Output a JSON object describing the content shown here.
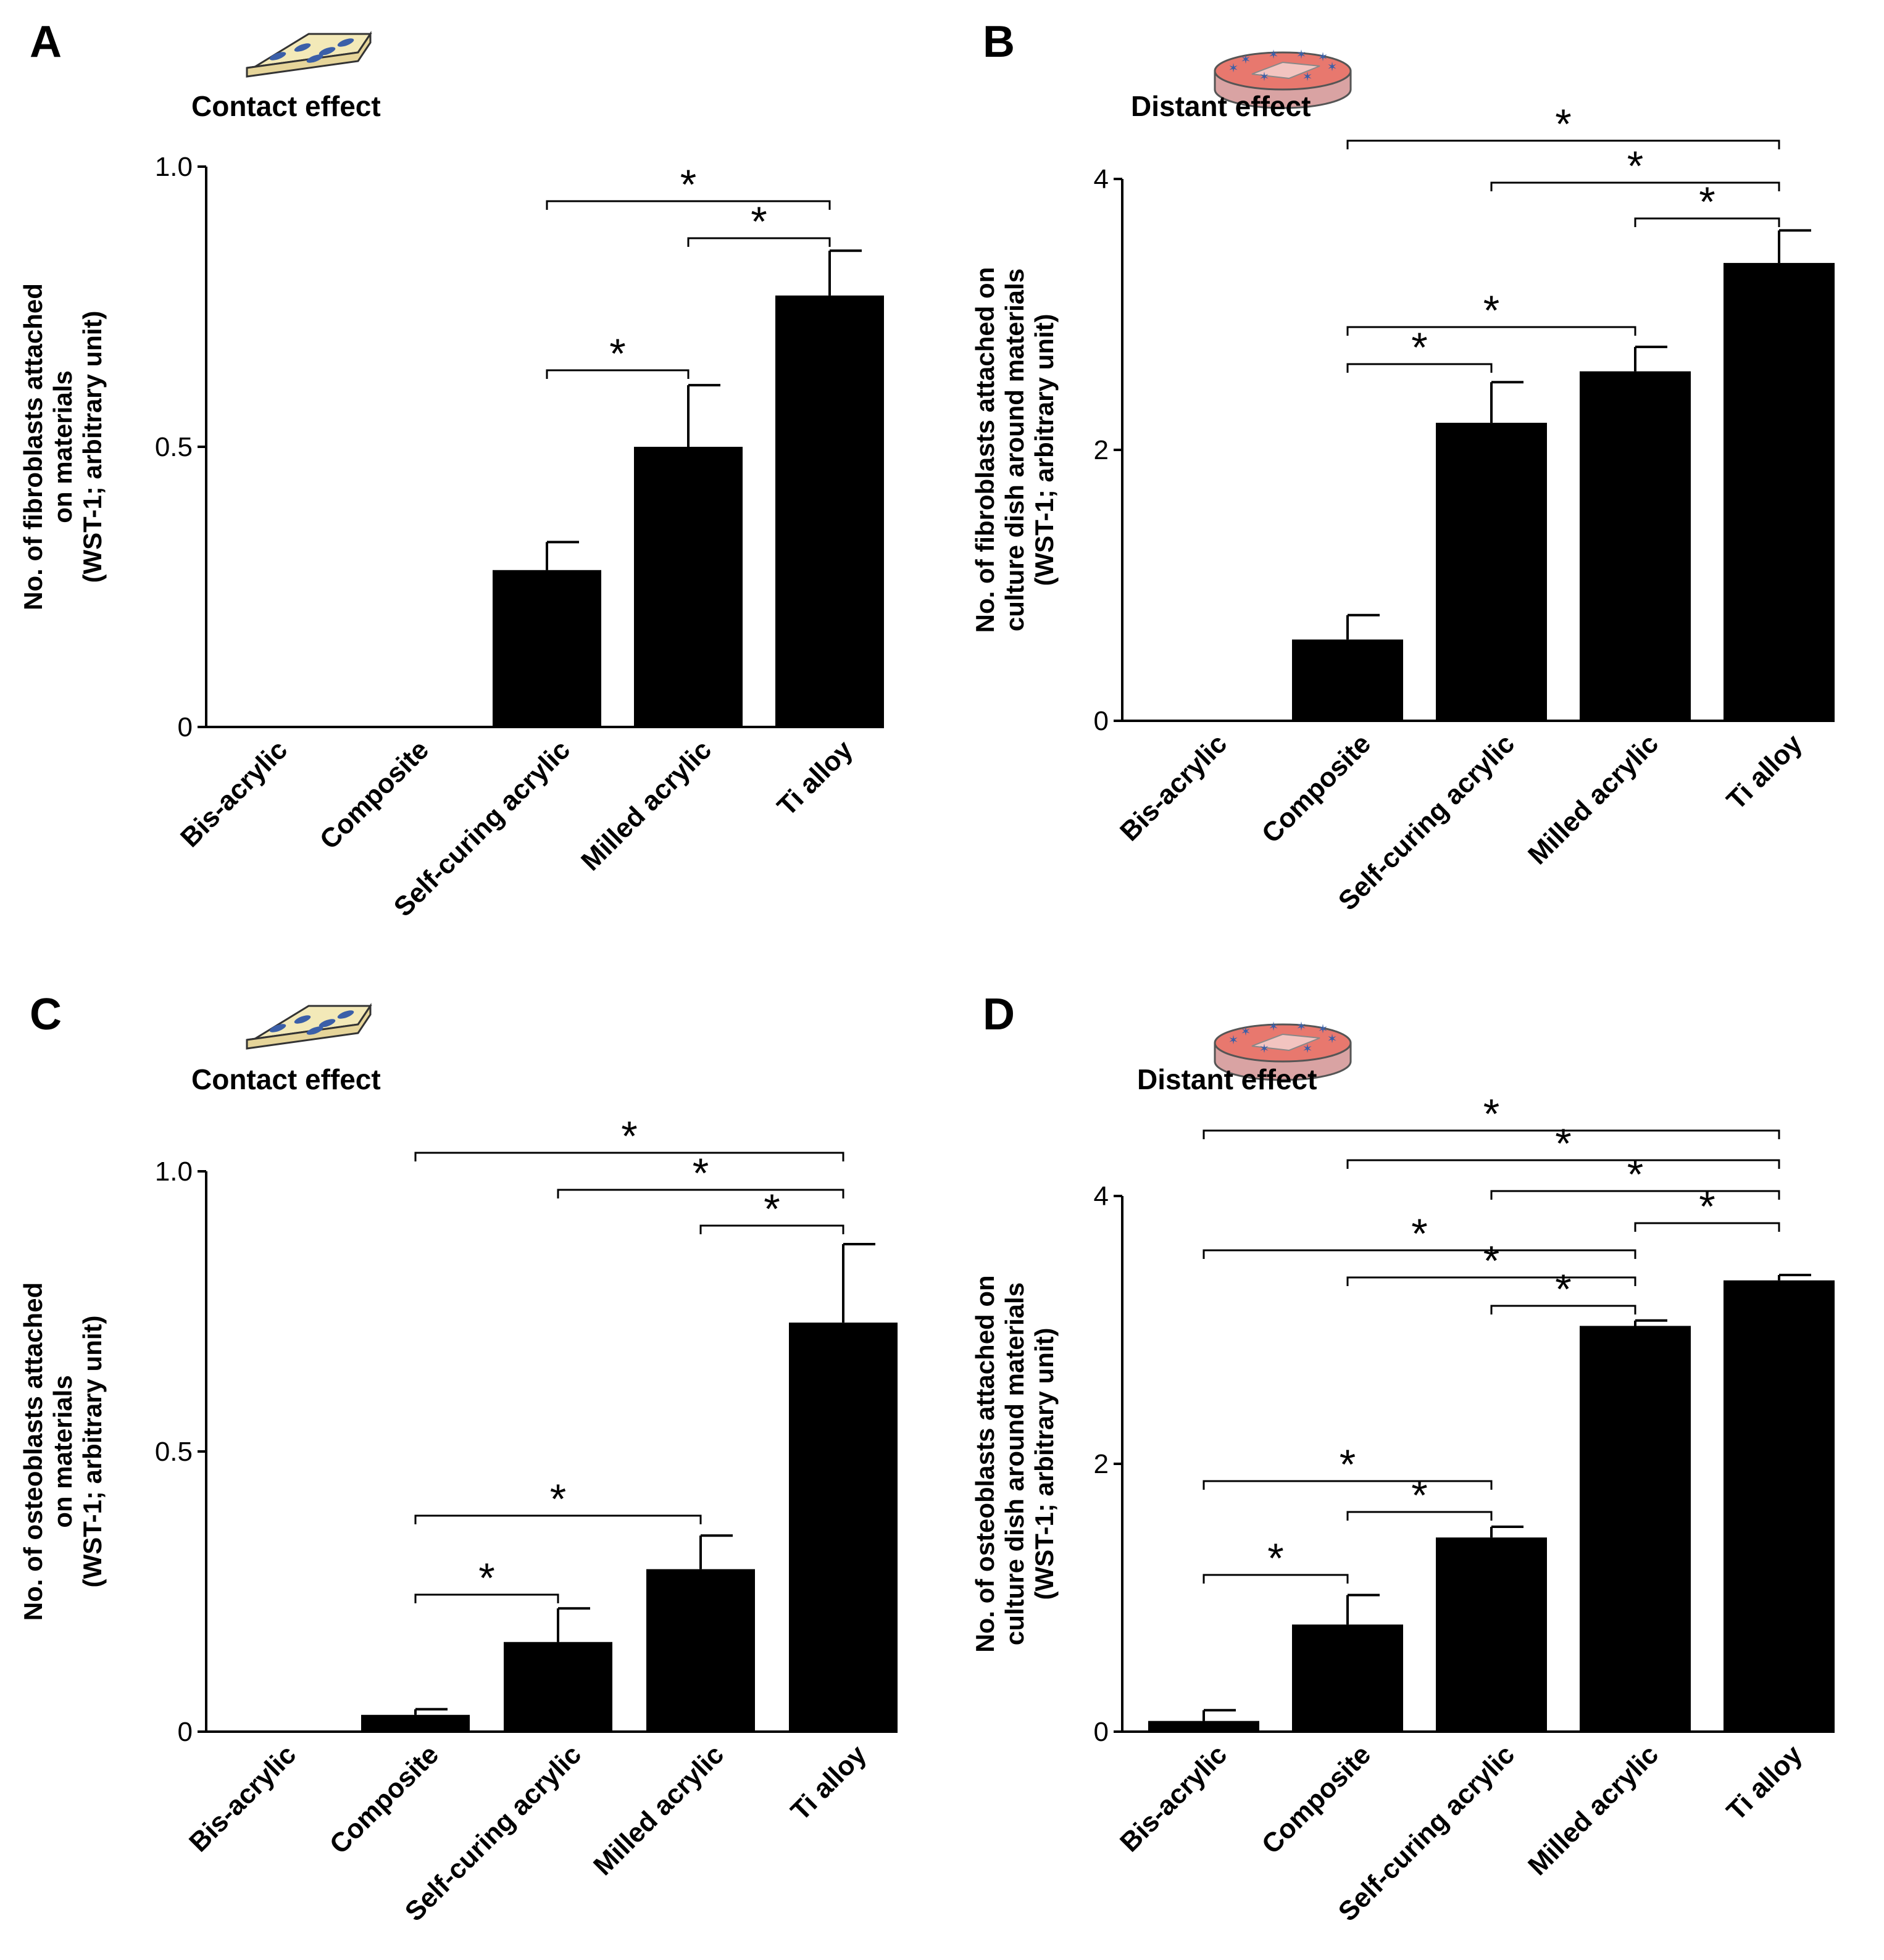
{
  "chart_data": [
    {
      "type": "bar",
      "panel": "A",
      "subtitle": "Contact effect",
      "icon": "cells-on-material-plate",
      "ylabel_lines": [
        "No. of fibroblasts attached",
        "on materials",
        "(WST-1; arbitrary unit)"
      ],
      "categories": [
        "Bis-acrylic",
        "Composite",
        "Self-curing acrylic",
        "Milled acrylic",
        "Ti alloy"
      ],
      "values": [
        0,
        0,
        0.28,
        0.5,
        0.77
      ],
      "errors": [
        0,
        0,
        0.05,
        0.11,
        0.08
      ],
      "ylim": [
        0,
        1.0
      ],
      "yticks": [
        0,
        0.5,
        1.0
      ],
      "ytick_labels": [
        "0",
        "0.5",
        "1.0"
      ],
      "significance": [
        {
          "from": 2,
          "to": 4,
          "label": "*"
        },
        {
          "from": 3,
          "to": 4,
          "label": "*"
        },
        {
          "from": 2,
          "to": 3,
          "label": "*"
        }
      ]
    },
    {
      "type": "bar",
      "panel": "B",
      "subtitle": "Distant effect",
      "icon": "culture-dish",
      "ylabel_lines": [
        "No. of fibroblasts attached on",
        "culture dish around materials",
        "(WST-1; arbitrary unit)"
      ],
      "categories": [
        "Bis-acrylic",
        "Composite",
        "Self-curing acrylic",
        "Milled acrylic",
        "Ti alloy"
      ],
      "values": [
        0,
        0.6,
        2.2,
        2.58,
        3.38
      ],
      "errors": [
        0,
        0.18,
        0.3,
        0.18,
        0.24
      ],
      "ylim": [
        0,
        4
      ],
      "yticks": [
        0,
        2,
        4
      ],
      "ytick_labels": [
        "0",
        "2",
        "4"
      ],
      "significance": [
        {
          "from": 1,
          "to": 4,
          "label": "*"
        },
        {
          "from": 2,
          "to": 4,
          "label": "*"
        },
        {
          "from": 3,
          "to": 4,
          "label": "*"
        },
        {
          "from": 1,
          "to": 3,
          "label": "*"
        },
        {
          "from": 1,
          "to": 2,
          "label": "*"
        }
      ]
    },
    {
      "type": "bar",
      "panel": "C",
      "subtitle": "Contact effect",
      "icon": "cells-on-material-plate",
      "ylabel_lines": [
        "No. of osteoblasts attached",
        "on materials",
        "(WST-1; arbitrary unit)"
      ],
      "categories": [
        "Bis-acrylic",
        "Composite",
        "Self-curing acrylic",
        "Milled acrylic",
        "Ti alloy"
      ],
      "values": [
        0,
        0.03,
        0.16,
        0.29,
        0.73
      ],
      "errors": [
        0,
        0.01,
        0.06,
        0.06,
        0.14
      ],
      "ylim": [
        0,
        1.0
      ],
      "yticks": [
        0,
        0.5,
        1.0
      ],
      "ytick_labels": [
        "0",
        "0.5",
        "1.0"
      ],
      "significance": [
        {
          "from": 1,
          "to": 4,
          "label": "*"
        },
        {
          "from": 2,
          "to": 4,
          "label": "*"
        },
        {
          "from": 3,
          "to": 4,
          "label": "*"
        },
        {
          "from": 1,
          "to": 3,
          "label": "*"
        },
        {
          "from": 1,
          "to": 2,
          "label": "*"
        }
      ]
    },
    {
      "type": "bar",
      "panel": "D",
      "subtitle": "Distant effect",
      "icon": "culture-dish",
      "ylabel_lines": [
        "No. of osteoblasts attached on",
        "culture dish around materials",
        "(WST-1; arbitrary unit)"
      ],
      "categories": [
        "Bis-acrylic",
        "Composite",
        "Self-curing acrylic",
        "Milled acrylic",
        "Ti alloy"
      ],
      "values": [
        0.08,
        0.8,
        1.45,
        3.03,
        3.37
      ],
      "errors": [
        0.08,
        0.22,
        0.08,
        0.04,
        0.04
      ],
      "ylim": [
        0,
        4
      ],
      "yticks": [
        0,
        2,
        4
      ],
      "ytick_labels": [
        "0",
        "2",
        "4"
      ],
      "significance": [
        {
          "from": 0,
          "to": 4,
          "label": "*"
        },
        {
          "from": 1,
          "to": 4,
          "label": "*"
        },
        {
          "from": 2,
          "to": 4,
          "label": "*"
        },
        {
          "from": 3,
          "to": 4,
          "label": "*"
        },
        {
          "from": 0,
          "to": 3,
          "label": "*"
        },
        {
          "from": 1,
          "to": 3,
          "label": "*"
        },
        {
          "from": 2,
          "to": 3,
          "label": "*"
        },
        {
          "from": 0,
          "to": 2,
          "label": "*"
        },
        {
          "from": 1,
          "to": 2,
          "label": "*"
        },
        {
          "from": 0,
          "to": 1,
          "label": "*"
        }
      ]
    }
  ],
  "colors": {
    "bar": "#000000",
    "axis": "#000000",
    "plate_fill": "#f3e9b8",
    "dish_fill": "#e8786e",
    "cell_color": "#3b5fa8"
  }
}
